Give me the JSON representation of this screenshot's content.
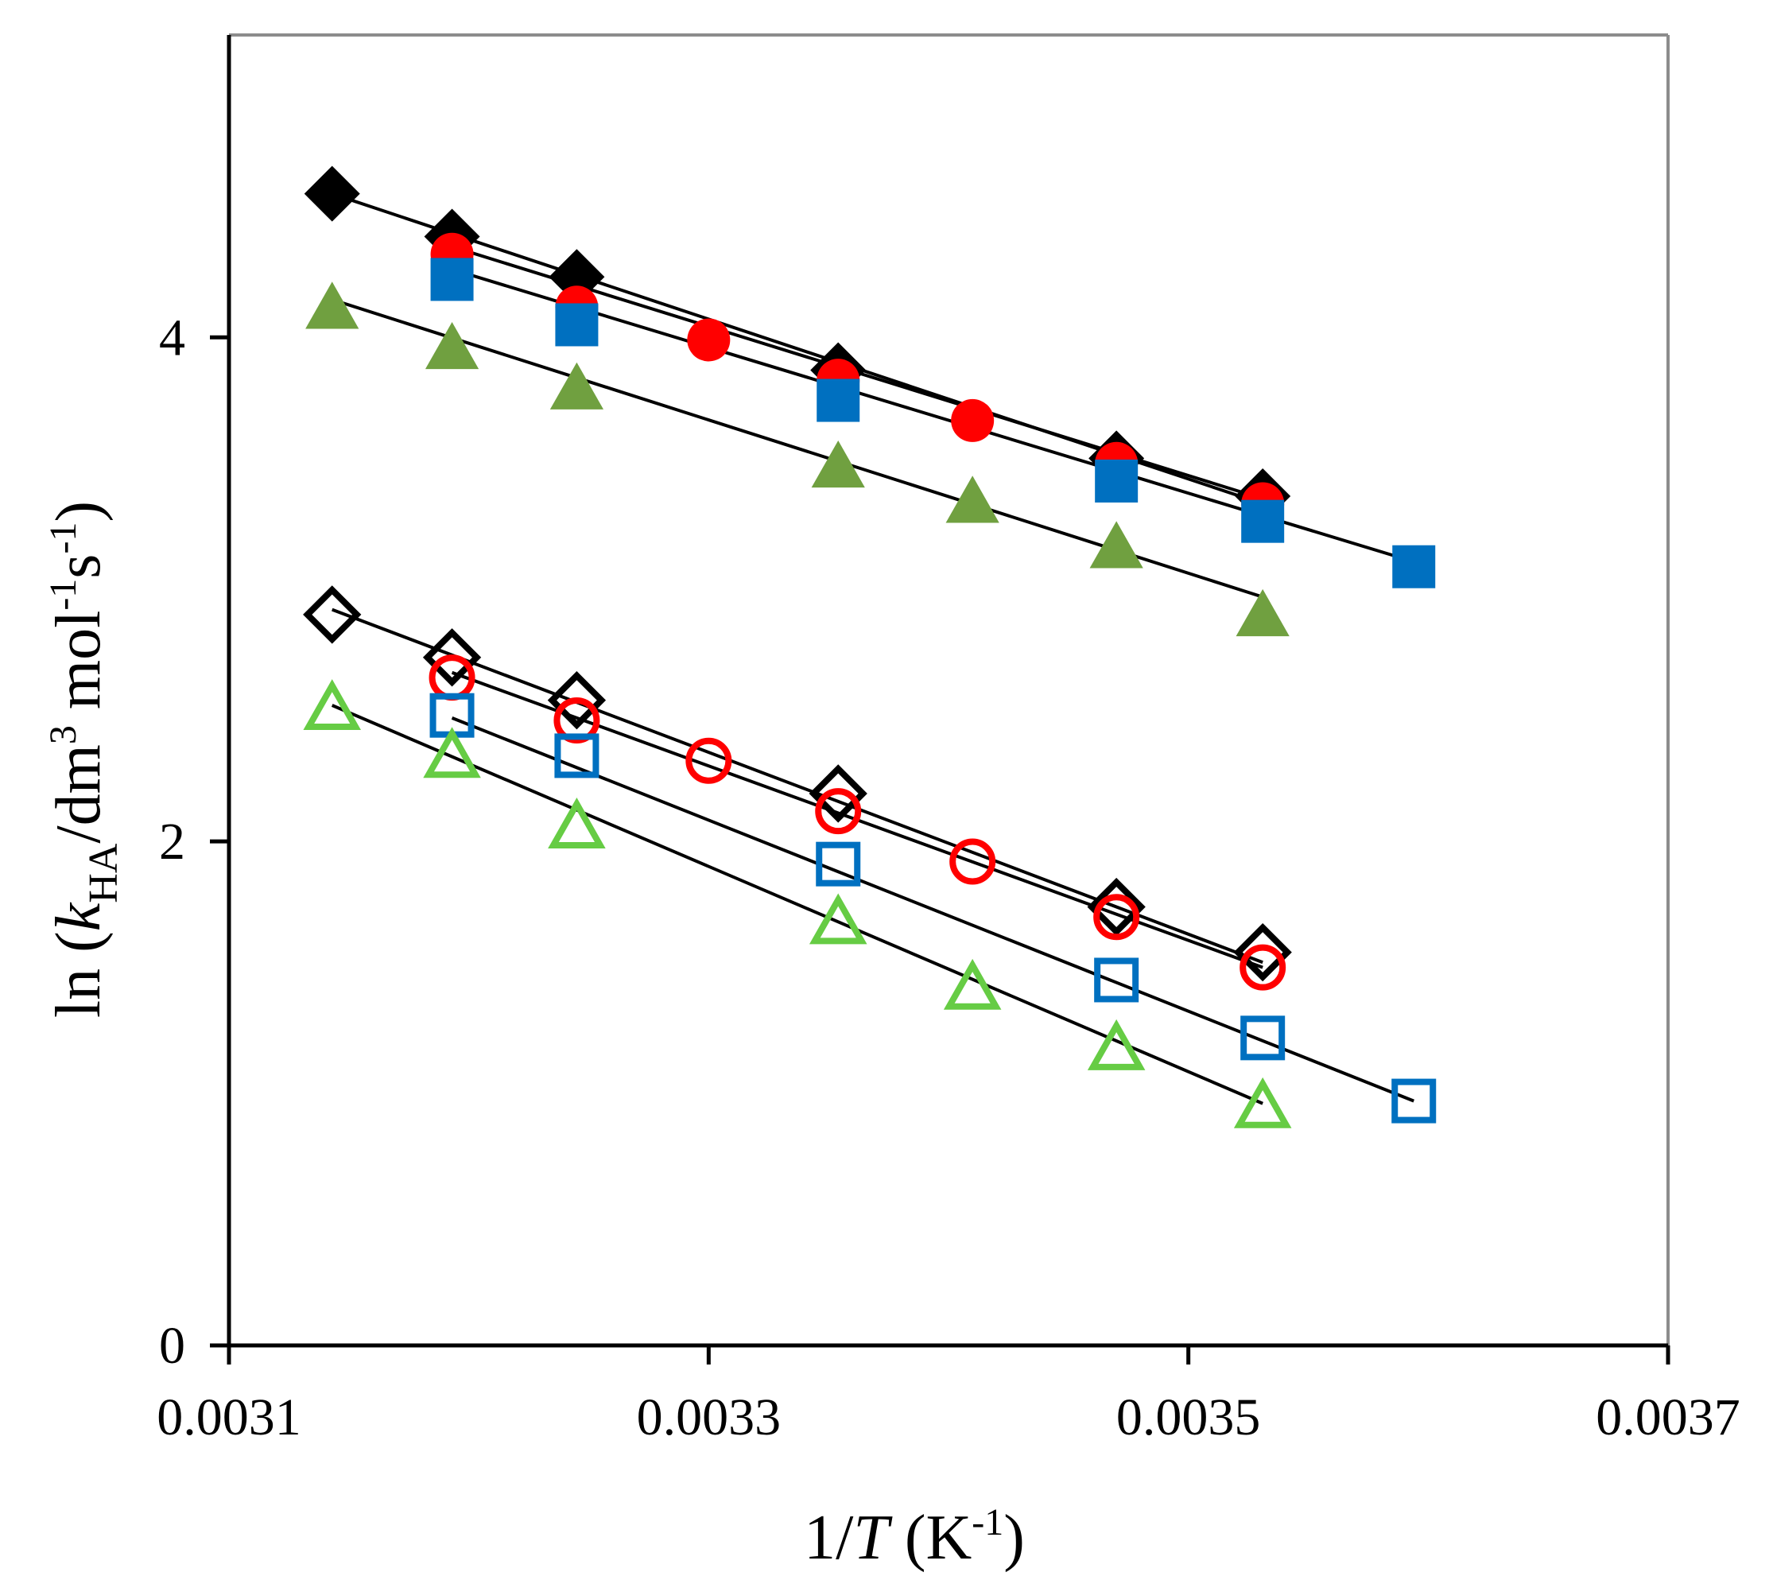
{
  "chart_data": {
    "type": "scatter",
    "title": "",
    "xlabel": {
      "prefix": "1/",
      "var": "T",
      "unit": " (K",
      "sup": "-1",
      "close": ")"
    },
    "ylabel": {
      "prefix": "ln (",
      "var": "k",
      "sub": "HA",
      "unit": "/dm",
      "sup1": "3",
      "mid": " mol",
      "sup2": "-1",
      "mid2": "s",
      "sup3": "-1",
      "close": ")"
    },
    "xlim": [
      0.0031,
      0.0037
    ],
    "ylim": [
      0,
      5.2
    ],
    "xticks": [
      0.0031,
      0.0033,
      0.0035,
      0.0037
    ],
    "xtick_labels": [
      "0.0031",
      "0.0033",
      "0.0035",
      "0.0037"
    ],
    "yticks": [
      0,
      2,
      4
    ],
    "ytick_labels": [
      "0",
      "2",
      "4"
    ],
    "grid": false,
    "legend": "none",
    "series": [
      {
        "name": "filled-diamond",
        "marker": "diamond",
        "filled": true,
        "color": "#000000",
        "x": [
          0.003143,
          0.003193,
          0.003245,
          0.003354,
          0.00347,
          0.003531
        ],
        "y": [
          4.57,
          4.4,
          4.24,
          3.87,
          3.52,
          3.37
        ],
        "fit": [
          [
            0.003143,
            4.57
          ],
          [
            0.003531,
            3.34
          ]
        ]
      },
      {
        "name": "filled-circle",
        "marker": "circle",
        "filled": true,
        "color": "#ff0000",
        "x": [
          0.003193,
          0.003245,
          0.0033,
          0.003354,
          0.00341,
          0.00347,
          0.003531
        ],
        "y": [
          4.33,
          4.12,
          3.99,
          3.83,
          3.67,
          3.5,
          3.34
        ],
        "fit": [
          [
            0.003193,
            4.36
          ],
          [
            0.003531,
            3.36
          ]
        ]
      },
      {
        "name": "filled-square",
        "marker": "square",
        "filled": true,
        "color": "#0070c0",
        "x": [
          0.003193,
          0.003245,
          0.003354,
          0.00347,
          0.003531,
          0.003594
        ],
        "y": [
          4.23,
          4.05,
          3.75,
          3.43,
          3.27,
          3.09
        ],
        "fit": [
          [
            0.003193,
            4.27
          ],
          [
            0.003594,
            3.11
          ]
        ]
      },
      {
        "name": "filled-triangle",
        "marker": "triangle",
        "filled": true,
        "color": "#70a040",
        "x": [
          0.003143,
          0.003193,
          0.003245,
          0.003354,
          0.00341,
          0.00347,
          0.003531
        ],
        "y": [
          4.12,
          3.96,
          3.8,
          3.49,
          3.35,
          3.17,
          2.9
        ],
        "fit": [
          [
            0.003143,
            4.15
          ],
          [
            0.003531,
            2.97
          ]
        ]
      },
      {
        "name": "open-diamond",
        "marker": "diamond",
        "filled": false,
        "color": "#000000",
        "x": [
          0.003143,
          0.003193,
          0.003245,
          0.003354,
          0.00347,
          0.003531
        ],
        "y": [
          2.9,
          2.73,
          2.56,
          2.19,
          1.74,
          1.56
        ],
        "fit": [
          [
            0.003143,
            2.92
          ],
          [
            0.003531,
            1.52
          ]
        ]
      },
      {
        "name": "open-circle",
        "marker": "circle",
        "filled": false,
        "color": "#ff0000",
        "x": [
          0.003193,
          0.003245,
          0.0033,
          0.003354,
          0.00341,
          0.00347,
          0.003531
        ],
        "y": [
          2.65,
          2.48,
          2.32,
          2.12,
          1.92,
          1.7,
          1.5
        ],
        "fit": [
          [
            0.003193,
            2.67
          ],
          [
            0.003531,
            1.5
          ]
        ]
      },
      {
        "name": "open-square",
        "marker": "square",
        "filled": false,
        "color": "#0070c0",
        "x": [
          0.003193,
          0.003245,
          0.003354,
          0.00347,
          0.003531,
          0.003594
        ],
        "y": [
          2.5,
          2.34,
          1.91,
          1.45,
          1.22,
          0.97
        ],
        "fit": [
          [
            0.003193,
            2.49
          ],
          [
            0.003594,
            0.97
          ]
        ]
      },
      {
        "name": "open-triangle",
        "marker": "triangle",
        "filled": false,
        "color": "#66cc44",
        "x": [
          0.003143,
          0.003193,
          0.003245,
          0.003354,
          0.00341,
          0.00347,
          0.003531
        ],
        "y": [
          2.53,
          2.34,
          2.06,
          1.68,
          1.42,
          1.18,
          0.95
        ],
        "fit": [
          [
            0.003143,
            2.54
          ],
          [
            0.003531,
            0.96
          ]
        ]
      }
    ]
  }
}
